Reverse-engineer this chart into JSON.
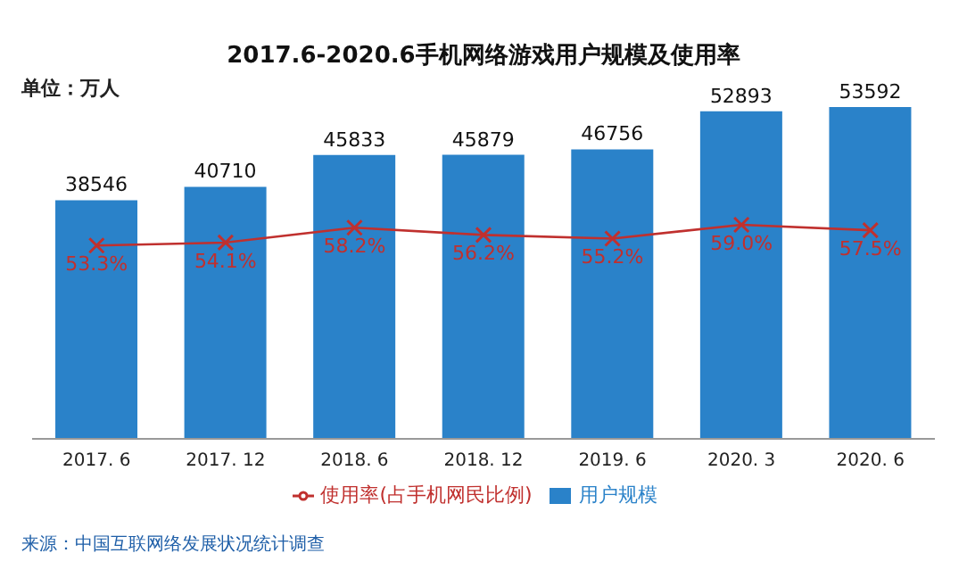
{
  "chart_data": {
    "type": "bar",
    "title": "2017.6-2020.6手机网络游戏用户规模及使用率",
    "categories": [
      "2017. 6",
      "2017. 12",
      "2018. 6",
      "2018. 12",
      "2019. 6",
      "2020. 3",
      "2020. 6"
    ],
    "series": [
      {
        "name": "用户规模",
        "color": "#2a82c9",
        "values": [
          38546,
          40710,
          45833,
          45879,
          46756,
          52893,
          53592
        ]
      },
      {
        "name": "使用率(占手机网民比例)",
        "type": "line",
        "axis": "y2",
        "color": "#c0302e",
        "values": [
          53.3,
          54.1,
          58.2,
          56.2,
          55.2,
          59.0,
          57.5
        ],
        "value_labels": [
          "53.3%",
          "54.1%",
          "58.2%",
          "56.2%",
          "55.2%",
          "59.0%",
          "57.5%"
        ]
      }
    ],
    "data_labels": true,
    "marker": "cross",
    "grid": false,
    "legend": "bottom",
    "annotations": [
      "单位：万人",
      "来源：中国互联网络发展状况统计调查"
    ]
  }
}
